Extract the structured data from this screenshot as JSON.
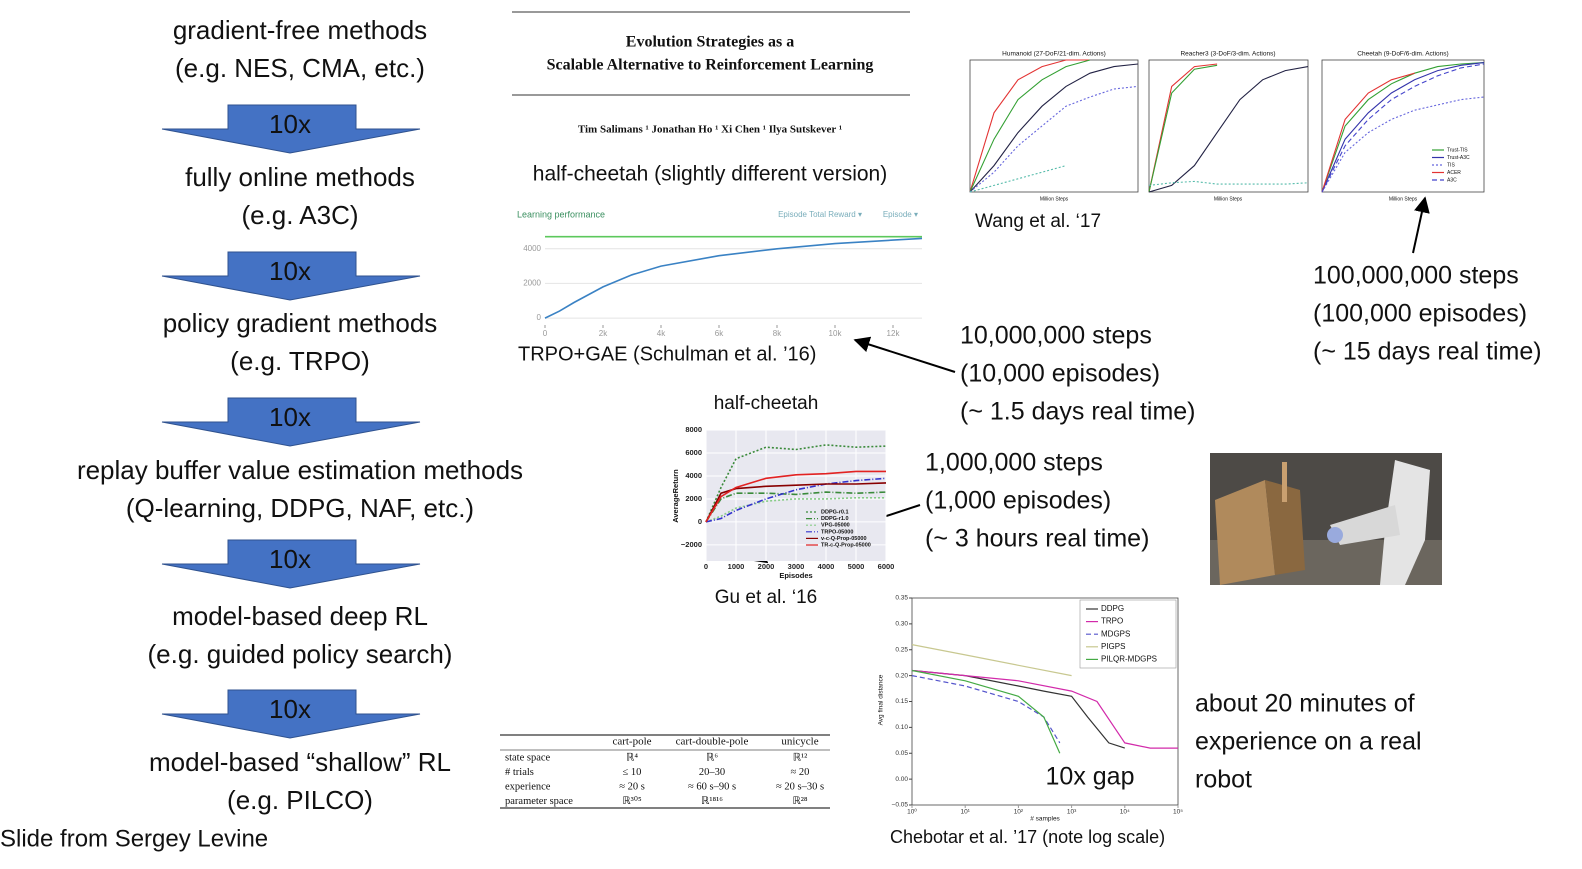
{
  "ladder": {
    "items": [
      {
        "title": "gradient-free methods",
        "subtitle": "(e.g. NES, CMA, etc.)"
      },
      {
        "title": "fully online methods",
        "subtitle": "(e.g. A3C)"
      },
      {
        "title": "policy gradient methods",
        "subtitle": "(e.g. TRPO)"
      },
      {
        "title": "replay buffer value estimation methods",
        "subtitle": "(Q-learning, DDPG, NAF, etc.)"
      },
      {
        "title": "model-based deep RL",
        "subtitle": "(e.g. guided policy search)"
      },
      {
        "title": "model-based “shallow” RL",
        "subtitle": "(e.g. PILCO)"
      }
    ],
    "arrows": [
      "10x",
      "10x",
      "10x",
      "10x",
      "10x"
    ]
  },
  "footer": "Slide from Sergey Levine",
  "paper": {
    "title_lines": [
      "Evolution Strategies as a",
      "Scalable Alternative to Reinforcement Learning"
    ],
    "authors": "Tim Salimans ¹  Jonathan Ho ¹  Xi Chen ¹  Ilya Sutskever ¹"
  },
  "annotations": [
    {
      "lines": [
        "10,000,000 steps",
        "(10,000 episodes)",
        "(~ 1.5 days real time)"
      ]
    },
    {
      "lines": [
        "100,000,000 steps",
        "(100,000 episodes)",
        "(~ 15 days real time)"
      ]
    },
    {
      "lines": [
        "1,000,000 steps",
        "(1,000 episodes)",
        "(~ 3 hours real time)"
      ]
    },
    {
      "lines": [
        "about 20 minutes of",
        "experience on a real",
        "robot"
      ]
    }
  ],
  "table": {
    "header": [
      "cart-pole",
      "cart-double-pole",
      "unicycle"
    ],
    "rows": [
      [
        "state space",
        "ℝ⁴",
        "ℝ⁶",
        "ℝ¹²"
      ],
      [
        "# trials",
        "≤ 10",
        "20–30",
        "≈ 20"
      ],
      [
        "experience",
        "≈ 20 s",
        "≈ 60 s–90 s",
        "≈ 20 s–30 s"
      ],
      [
        "parameter space",
        "ℝ³⁰⁵",
        "ℝ¹⁸¹⁶",
        "ℝ²⁸"
      ]
    ]
  },
  "chart_data": [
    {
      "type": "line",
      "heading": "half-cheetah (slightly different version)",
      "title": "Learning performance",
      "controls": [
        "Episode Total Reward ▾",
        "Episode ▾"
      ],
      "caption": "TRPO+GAE (Schulman et al. ’16)",
      "x": [
        0,
        500,
        1000,
        2000,
        3000,
        4000,
        6000,
        8000,
        10000,
        12000,
        13000
      ],
      "series": [
        {
          "color": "#5cc85c",
          "values": [
            4700,
            4700,
            4700,
            4700,
            4700,
            4700,
            4700,
            4700,
            4700,
            4700,
            4700
          ]
        },
        {
          "color": "#3a82c4",
          "values": [
            0,
            400,
            900,
            1800,
            2500,
            3000,
            3600,
            4000,
            4300,
            4500,
            4600
          ]
        }
      ],
      "xlim": [
        0,
        13000
      ],
      "ylim": [
        -400,
        5200
      ],
      "xticks": [
        0,
        {
          "value": 2000,
          "label": "2k"
        },
        {
          "value": 4000,
          "label": "4k"
        },
        {
          "value": 6000,
          "label": "6k"
        },
        {
          "value": 8000,
          "label": "8k"
        },
        {
          "value": 10000,
          "label": "10k"
        },
        {
          "value": 12000,
          "label": "12k"
        }
      ],
      "yticks": [
        0,
        2000,
        4000
      ],
      "grid": true
    },
    {
      "type": "line",
      "title": "half-cheetah",
      "caption": "Gu et al.  ‘16",
      "xlabel": "Episodes",
      "ylabel": "AverageReturn",
      "x": [
        0,
        500,
        1000,
        2000,
        3000,
        4000,
        5000,
        6000
      ],
      "series": [
        {
          "name": "DDPG-r0.1",
          "color": "#3a8a3a",
          "style": "dotted",
          "values": [
            0,
            3000,
            5500,
            6500,
            6300,
            6700,
            6500,
            6600
          ]
        },
        {
          "name": "DDPG-r1.0",
          "color": "#3a8a3a",
          "style": "dashdot",
          "values": [
            0,
            2000,
            2500,
            2500,
            2400,
            2600,
            2500,
            2600
          ]
        },
        {
          "name": "VPG-05000",
          "color": "#88cc88",
          "style": "dotted",
          "values": [
            0,
            500,
            1200,
            1800,
            2000,
            2000,
            2100,
            2100
          ]
        },
        {
          "name": "TRPO-05000",
          "color": "#3333cc",
          "style": "dashdot",
          "values": [
            0,
            300,
            1000,
            2000,
            2800,
            3300,
            3600,
            3800
          ]
        },
        {
          "name": "v-c-Q-Prop-05000",
          "color": "#880000",
          "values": [
            0,
            2500,
            2900,
            3100,
            3200,
            3300,
            3300,
            3400
          ]
        },
        {
          "name": "TR-c-Q-Prop-05000",
          "color": "#e22222",
          "values": [
            0,
            2200,
            3000,
            3800,
            4100,
            4200,
            4400,
            4400
          ]
        }
      ],
      "xlim": [
        0,
        6000
      ],
      "ylim": [
        -3400,
        8000
      ],
      "xticks": [
        0,
        1000,
        2000,
        3000,
        4000,
        5000,
        6000
      ],
      "yticks": [
        {
          "value": -2000,
          "label": "−2000"
        },
        0,
        2000,
        4000,
        6000,
        8000
      ],
      "grid": true,
      "background": "#e8e8f0",
      "legend": "lower right"
    },
    {
      "type": "line",
      "caption": "Chebotar et al. ’17 (note log scale)",
      "xlabel": "# samples",
      "ylabel": "Avg final distance",
      "annotation": "10x gap",
      "series": [
        {
          "name": "DDPG",
          "color": "#333333",
          "x": [
            1,
            10,
            100,
            300,
            1000,
            2000,
            5000,
            10000
          ],
          "values": [
            0.21,
            0.2,
            0.18,
            0.17,
            0.16,
            0.12,
            0.07,
            0.06
          ]
        },
        {
          "name": "TRPO",
          "color": "#d22aaa",
          "x": [
            1,
            100,
            1000,
            3000,
            10000,
            30000,
            100000
          ],
          "values": [
            0.21,
            0.19,
            0.17,
            0.15,
            0.07,
            0.06,
            0.06
          ]
        },
        {
          "name": "MDGPS",
          "color": "#5555cc",
          "style": "dashed",
          "x": [
            1,
            10,
            100,
            300,
            600
          ],
          "values": [
            0.2,
            0.18,
            0.15,
            0.12,
            0.07
          ]
        },
        {
          "name": "PIGPS",
          "color": "#c8c890",
          "x": [
            1,
            10,
            100,
            1000
          ],
          "values": [
            0.26,
            0.24,
            0.22,
            0.2
          ]
        },
        {
          "name": "PILQR-MDGPS",
          "color": "#44aa44",
          "x": [
            1,
            10,
            100,
            300,
            600
          ],
          "values": [
            0.21,
            0.19,
            0.16,
            0.12,
            0.05
          ]
        }
      ],
      "xlog": true,
      "xlim": [
        1,
        100000
      ],
      "ylim": [
        -0.05,
        0.35
      ],
      "xticks": [
        {
          "value": 1,
          "label": "10⁰"
        },
        {
          "value": 10,
          "label": "10¹"
        },
        {
          "value": 100,
          "label": "10²"
        },
        {
          "value": 1000,
          "label": "10³"
        },
        {
          "value": 10000,
          "label": "10⁴"
        },
        {
          "value": 100000,
          "label": "10⁵"
        }
      ],
      "yticks": [
        {
          "value": -0.05,
          "label": "−0.05"
        },
        {
          "value": 0,
          "label": "0.00"
        },
        0.05,
        {
          "value": 0.1,
          "label": "0.10"
        },
        0.15,
        {
          "value": 0.2,
          "label": "0.20"
        },
        0.25,
        {
          "value": 0.3,
          "label": "0.30"
        },
        0.35
      ],
      "legend": "upper right",
      "frame": true
    },
    {
      "type": "line",
      "title": "Humanoid (27-DoF/21-dim. Actions)",
      "xlabel": "Million Steps",
      "caption": "Wang et al. ‘17",
      "ylim": [
        0,
        1
      ],
      "frame": true,
      "series": [
        {
          "color": "#e33333",
          "values": [
            0,
            0.6,
            0.85,
            0.95,
            1,
            1,
            null,
            null
          ]
        },
        {
          "color": "#33a033",
          "values": [
            0,
            0.4,
            0.7,
            0.85,
            0.95,
            1,
            null,
            null
          ]
        },
        {
          "color": "#222244",
          "values": [
            0,
            0.2,
            0.45,
            0.65,
            0.8,
            0.9,
            0.95,
            0.97
          ]
        },
        {
          "color": "#6666dd",
          "style": "dotted",
          "values": [
            0,
            0.15,
            0.35,
            0.5,
            0.65,
            0.72,
            0.78,
            0.8
          ]
        },
        {
          "color": "#55bbaa",
          "style": "dotted",
          "values": [
            0,
            0.05,
            0.1,
            0.15,
            0.2,
            null,
            null,
            null
          ]
        }
      ]
    },
    {
      "type": "line",
      "title": "Reacher3 (3-DoF/3-dim. Actions)",
      "xlabel": "Million Steps",
      "ylim": [
        0,
        1
      ],
      "frame": true,
      "series": [
        {
          "color": "#e33333",
          "values": [
            0,
            0.8,
            0.95,
            0.97,
            null,
            null,
            null,
            null
          ]
        },
        {
          "color": "#33a033",
          "values": [
            0,
            0.75,
            0.93,
            0.96,
            null,
            null,
            null,
            null
          ]
        },
        {
          "color": "#222244",
          "values": [
            0,
            0.05,
            0.2,
            0.45,
            0.7,
            0.85,
            0.92,
            0.95
          ]
        },
        {
          "color": "#55bbaa",
          "style": "dotted",
          "values": [
            0.05,
            0.07,
            0.08,
            0.06,
            0.06,
            0.06,
            0.06,
            0.07
          ]
        }
      ]
    },
    {
      "type": "line",
      "title": "Cheetah (9-DoF/6-dim. Actions)",
      "xlabel": "Million Steps",
      "ylim": [
        0,
        1
      ],
      "frame": true,
      "legend": "lower right",
      "series": [
        {
          "name": "Trust-TIS",
          "color": "#33a033",
          "values": [
            0,
            0.5,
            0.7,
            0.82,
            0.9,
            0.95,
            0.97,
            0.98
          ]
        },
        {
          "name": "Trust-A3C",
          "color": "#3333aa",
          "values": [
            0,
            0.4,
            0.6,
            0.75,
            0.85,
            0.92,
            0.96,
            0.98
          ]
        },
        {
          "name": "TIS",
          "color": "#6666dd",
          "style": "dotted",
          "values": [
            0,
            0.3,
            0.45,
            0.55,
            0.62,
            0.66,
            0.7,
            0.72
          ]
        },
        {
          "name": "ACER",
          "color": "#e33333",
          "values": [
            0,
            0.55,
            0.75,
            0.85,
            0.9,
            null,
            null,
            null
          ]
        },
        {
          "name": "A3C",
          "color": "#4444cc",
          "style": "dashed",
          "values": [
            0,
            0.35,
            0.55,
            0.7,
            0.8,
            0.88,
            0.94,
            0.97
          ]
        }
      ]
    }
  ]
}
